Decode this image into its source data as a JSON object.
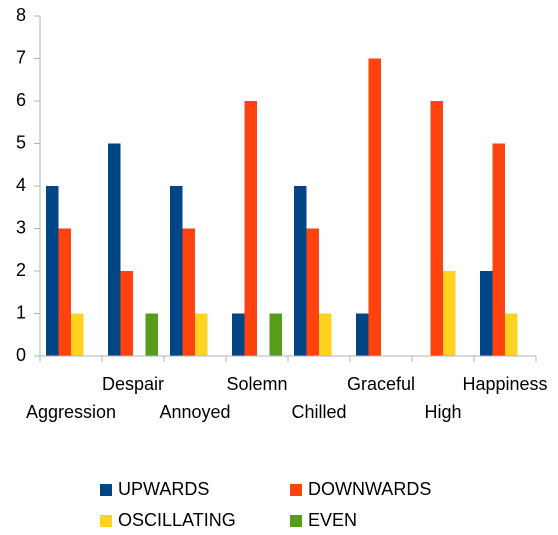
{
  "chart_data": {
    "type": "bar",
    "categories": [
      "Aggression",
      "Despair",
      "Annoyed",
      "Solemn",
      "Chilled",
      "Graceful",
      "High",
      "Happiness"
    ],
    "series": [
      {
        "name": "UPWARDS",
        "color": "#004586",
        "values": [
          4,
          5,
          4,
          1,
          4,
          1,
          0,
          2
        ]
      },
      {
        "name": "DOWNWARDS",
        "color": "#ff420e",
        "values": [
          3,
          2,
          3,
          6,
          3,
          7,
          6,
          5
        ]
      },
      {
        "name": "OSCILLATING",
        "color": "#ffd320",
        "values": [
          1,
          0,
          1,
          0,
          1,
          0,
          2,
          1
        ]
      },
      {
        "name": "EVEN",
        "color": "#579d1c",
        "values": [
          0,
          1,
          0,
          1,
          0,
          0,
          0,
          0
        ]
      }
    ],
    "ylim": [
      0,
      8
    ],
    "yticks": [
      0,
      1,
      2,
      3,
      4,
      5,
      6,
      7,
      8
    ],
    "grid": false,
    "legend": "bottom"
  }
}
